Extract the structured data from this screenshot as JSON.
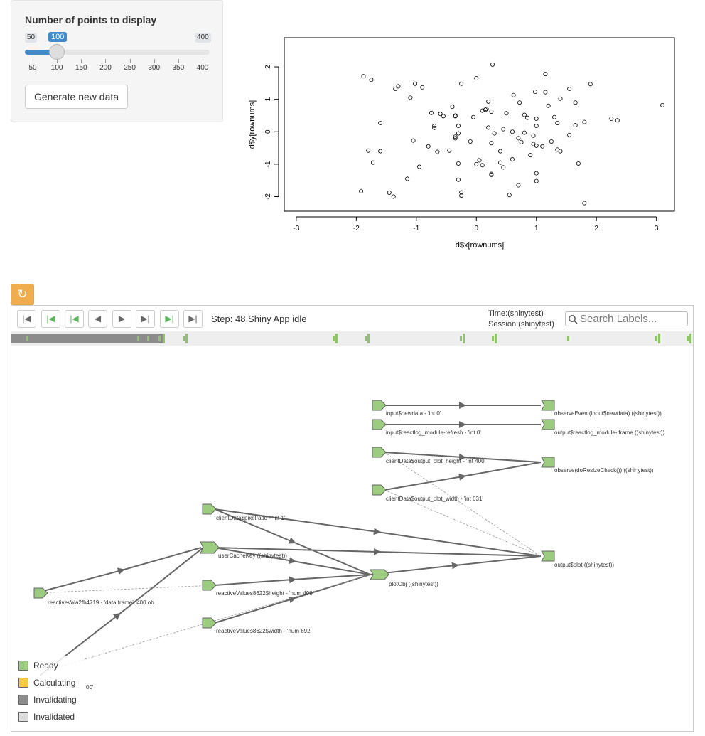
{
  "sidebar": {
    "slider": {
      "label": "Number of points to display",
      "min_label": "50",
      "max_label": "400",
      "value_label": "100",
      "value": 100,
      "min": 50,
      "max": 400,
      "ticks": [
        "50",
        "100",
        "150",
        "200",
        "250",
        "300",
        "350",
        "400"
      ]
    },
    "generate_button_label": "Generate new data"
  },
  "chart_data": {
    "type": "scatter",
    "xlabel": "d$x[rownums]",
    "ylabel": "d$y[rownums]",
    "xlim": [
      -3.2,
      3.3
    ],
    "ylim": [
      -2.45,
      2.9
    ],
    "xticks": [
      "-3",
      "-2",
      "-1",
      "0",
      "1",
      "2",
      "3"
    ],
    "yticks": [
      "-2",
      "-1",
      "0",
      "1",
      "2"
    ],
    "points": [
      [
        -1.88,
        1.71
      ],
      [
        -1.75,
        1.6
      ],
      [
        -1.35,
        1.32
      ],
      [
        -1.3,
        1.4
      ],
      [
        -1.1,
        1.05
      ],
      [
        -1.02,
        1.48
      ],
      [
        -0.9,
        1.37
      ],
      [
        0.0,
        1.65
      ],
      [
        0.27,
        2.07
      ],
      [
        -0.25,
        1.48
      ],
      [
        1.15,
        1.78
      ],
      [
        0.98,
        1.23
      ],
      [
        1.15,
        1.22
      ],
      [
        1.55,
        1.32
      ],
      [
        1.9,
        1.47
      ],
      [
        -1.6,
        0.27
      ],
      [
        -0.75,
        0.58
      ],
      [
        -0.6,
        0.55
      ],
      [
        -0.55,
        0.48
      ],
      [
        -0.7,
        0.18
      ],
      [
        -0.7,
        0.12
      ],
      [
        -0.35,
        0.48
      ],
      [
        -0.35,
        0.5
      ],
      [
        -0.3,
        0.18
      ],
      [
        -0.4,
        0.77
      ],
      [
        -0.05,
        0.45
      ],
      [
        0.1,
        0.65
      ],
      [
        0.15,
        0.68
      ],
      [
        0.17,
        0.7
      ],
      [
        0.2,
        0.93
      ],
      [
        0.25,
        0.62
      ],
      [
        0.5,
        0.57
      ],
      [
        0.62,
        1.13
      ],
      [
        0.72,
        0.9
      ],
      [
        0.8,
        0.52
      ],
      [
        0.85,
        0.43
      ],
      [
        1.0,
        0.18
      ],
      [
        1.0,
        0.4
      ],
      [
        1.2,
        0.8
      ],
      [
        1.3,
        0.45
      ],
      [
        1.35,
        0.27
      ],
      [
        1.4,
        1.02
      ],
      [
        1.65,
        0.9
      ],
      [
        1.8,
        0.3
      ],
      [
        2.25,
        0.4
      ],
      [
        2.35,
        0.35
      ],
      [
        3.1,
        0.82
      ],
      [
        -1.05,
        -0.27
      ],
      [
        -0.8,
        -0.45
      ],
      [
        -0.65,
        -0.62
      ],
      [
        -0.45,
        -0.58
      ],
      [
        -0.35,
        -0.15
      ],
      [
        -0.35,
        -0.2
      ],
      [
        -0.3,
        -0.05
      ],
      [
        -0.1,
        -0.3
      ],
      [
        0.05,
        -0.88
      ],
      [
        0.2,
        0.13
      ],
      [
        0.3,
        -0.05
      ],
      [
        0.25,
        -0.35
      ],
      [
        0.4,
        -0.6
      ],
      [
        0.45,
        0.08
      ],
      [
        0.6,
        0.0
      ],
      [
        0.7,
        -0.2
      ],
      [
        0.75,
        -0.32
      ],
      [
        0.8,
        -0.03
      ],
      [
        0.95,
        -0.12
      ],
      [
        0.95,
        -0.38
      ],
      [
        1.0,
        -0.43
      ],
      [
        1.1,
        -0.45
      ],
      [
        1.25,
        -0.3
      ],
      [
        1.35,
        -0.55
      ],
      [
        1.4,
        -0.6
      ],
      [
        1.55,
        -0.1
      ],
      [
        1.65,
        0.2
      ],
      [
        1.7,
        -0.98
      ],
      [
        -1.8,
        -0.58
      ],
      [
        -1.72,
        -0.95
      ],
      [
        -1.6,
        -0.6
      ],
      [
        -0.95,
        -1.08
      ],
      [
        -1.15,
        -1.45
      ],
      [
        -0.3,
        -0.98
      ],
      [
        -0.3,
        -1.48
      ],
      [
        0.0,
        -1.0
      ],
      [
        0.1,
        -1.03
      ],
      [
        0.25,
        -1.33
      ],
      [
        0.25,
        -1.3
      ],
      [
        0.4,
        -0.95
      ],
      [
        0.45,
        -1.1
      ],
      [
        0.6,
        -0.85
      ],
      [
        0.9,
        -0.72
      ],
      [
        -1.92,
        -1.83
      ],
      [
        -1.45,
        -1.88
      ],
      [
        -1.38,
        -2.0
      ],
      [
        -0.25,
        -1.87
      ],
      [
        -0.25,
        -1.97
      ],
      [
        0.55,
        -1.95
      ],
      [
        0.7,
        -1.65
      ],
      [
        1.0,
        -1.28
      ],
      [
        1.0,
        -1.52
      ],
      [
        1.8,
        -2.2
      ]
    ]
  },
  "reactlog": {
    "refresh_icon": "refresh-icon",
    "nav_icons": [
      "first-step-icon",
      "prev-idle-icon",
      "prev-cycle-icon",
      "prev-step-icon",
      "next-step-icon",
      "next-cycle-icon",
      "next-idle-icon",
      "last-step-icon"
    ],
    "step_label": "Step:",
    "step_value": "48 Shiny App idle",
    "time_label": "Time:(shinytest)",
    "session_label": "Session:(shinytest)",
    "search_placeholder": "Search Labels...",
    "colors": {
      "ready": "#9ccc80",
      "calculating": "#f7c844",
      "invalidating": "#8c8c8c",
      "invalidated": "#dddddd",
      "edge": "#666666"
    },
    "legend": [
      "Ready",
      "Calculating",
      "Invalidating",
      "Invalidated"
    ],
    "nodes": [
      {
        "label": "input$newdata - 'int 0'"
      },
      {
        "label": "observeEvent(input$newdata) ((shinytest))"
      },
      {
        "label": "input$reactlog_module-refresh - 'int 0'"
      },
      {
        "label": "output$reactlog_module-iframe ((shinytest))"
      },
      {
        "label": "clientData$output_plot_height - 'int 400'"
      },
      {
        "label": "observe(doResizeCheck()) ((shinytest))"
      },
      {
        "label": "clientData$output_plot_width - 'int 631'"
      },
      {
        "label": "clientData$pixelratio - 'int 1'"
      },
      {
        "label": "userCacheKey ((shinytest))"
      },
      {
        "label": "output$plot ((shinytest))"
      },
      {
        "label": "plotObj ((shinytest))"
      },
      {
        "label": "reactiveValues8622$height - 'num 400'"
      },
      {
        "label": "reactiveVala2fb4719 - 'data.frame': 400 ob..."
      },
      {
        "label": "reactiveValues8622$width - 'num 692'"
      },
      {
        "label": "00'"
      }
    ]
  }
}
